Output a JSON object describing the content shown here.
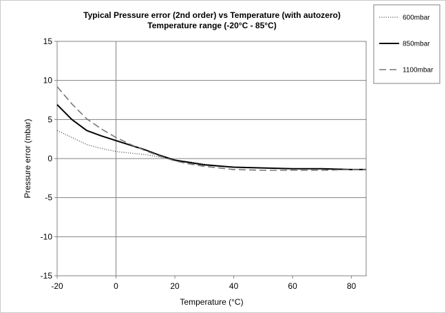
{
  "chart_data": {
    "type": "line",
    "title": "Typical Pressure error (2nd order) vs Temperature (with autozero)",
    "subtitle": "Temperature range (-20°C - 85°C)",
    "xlabel": "Temperature (°C)",
    "ylabel": "Pressure error (mbar)",
    "xlim": [
      -20,
      85
    ],
    "ylim": [
      -15,
      15
    ],
    "xticks": [
      -20,
      0,
      20,
      40,
      60,
      80
    ],
    "yticks": [
      -15,
      -10,
      -5,
      0,
      5,
      10,
      15
    ],
    "grid": "horizontal",
    "legend_position": "right",
    "series": [
      {
        "name": "600mbar",
        "style": "dotted",
        "color": "#555555",
        "x": [
          -20,
          -15,
          -10,
          -5,
          0,
          5,
          10,
          15,
          20,
          25,
          30,
          40,
          50,
          60,
          70,
          80,
          85
        ],
        "y": [
          3.6,
          2.7,
          1.8,
          1.3,
          0.9,
          0.7,
          0.5,
          0.2,
          -0.2,
          -0.4,
          -0.7,
          -1.1,
          -1.2,
          -1.3,
          -1.3,
          -1.4,
          -1.4
        ]
      },
      {
        "name": "850mbar",
        "style": "solid",
        "color": "#000000",
        "x": [
          -20,
          -15,
          -10,
          -5,
          0,
          5,
          10,
          15,
          20,
          25,
          30,
          40,
          50,
          60,
          70,
          80,
          85
        ],
        "y": [
          6.9,
          5.0,
          3.6,
          2.9,
          2.3,
          1.7,
          1.1,
          0.4,
          -0.2,
          -0.5,
          -0.8,
          -1.1,
          -1.2,
          -1.3,
          -1.3,
          -1.4,
          -1.4
        ]
      },
      {
        "name": "1100mbar",
        "style": "dashed",
        "color": "#777777",
        "x": [
          -20,
          -15,
          -10,
          -5,
          0,
          5,
          10,
          15,
          20,
          25,
          30,
          40,
          50,
          60,
          70,
          80,
          85
        ],
        "y": [
          9.2,
          7.0,
          5.1,
          3.8,
          2.7,
          1.8,
          1.0,
          0.3,
          -0.3,
          -0.7,
          -1.0,
          -1.4,
          -1.5,
          -1.5,
          -1.5,
          -1.4,
          -1.4
        ]
      }
    ]
  }
}
